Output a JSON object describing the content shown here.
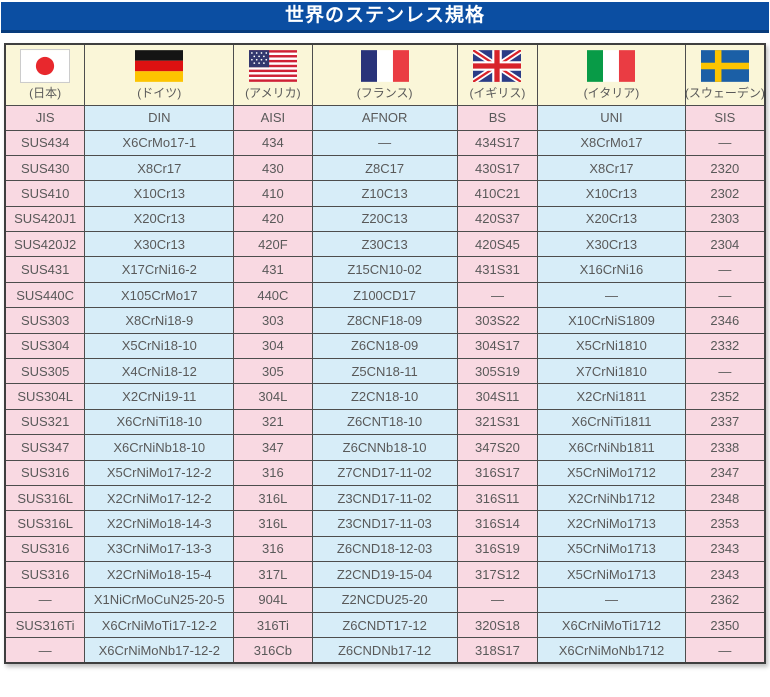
{
  "title": "世界のステンレス規格",
  "colors": {
    "banner_blue": "#0b4ea2",
    "banner_edge": "#083c7c",
    "column_pink": "#f9d9e2",
    "column_blue": "#d7edf8",
    "header_cream": "#faf6d8",
    "grid_line": "#4d4d4d",
    "text_gray": "#595959"
  },
  "table": {
    "columns": [
      {
        "country_label": "(日本)",
        "code": "JIS",
        "flag_icon": "japan-flag"
      },
      {
        "country_label": "(ドイツ)",
        "code": "DIN",
        "flag_icon": "germany-flag"
      },
      {
        "country_label": "(アメリカ)",
        "code": "AISI",
        "flag_icon": "usa-flag"
      },
      {
        "country_label": "(フランス)",
        "code": "AFNOR",
        "flag_icon": "france-flag"
      },
      {
        "country_label": "(イギリス)",
        "code": "BS",
        "flag_icon": "uk-flag"
      },
      {
        "country_label": "(イタリア)",
        "code": "UNI",
        "flag_icon": "italy-flag"
      },
      {
        "country_label": "(スウェーデン)",
        "code": "SIS",
        "flag_icon": "sweden-flag"
      }
    ],
    "rows": [
      [
        "SUS434",
        "X6CrMo17-1",
        "434",
        "—",
        "434S17",
        "X8CrMo17",
        "—"
      ],
      [
        "SUS430",
        "X8Cr17",
        "430",
        "Z8C17",
        "430S17",
        "X8Cr17",
        "2320"
      ],
      [
        "SUS410",
        "X10Cr13",
        "410",
        "Z10C13",
        "410C21",
        "X10Cr13",
        "2302"
      ],
      [
        "SUS420J1",
        "X20Cr13",
        "420",
        "Z20C13",
        "420S37",
        "X20Cr13",
        "2303"
      ],
      [
        "SUS420J2",
        "X30Cr13",
        "420F",
        "Z30C13",
        "420S45",
        "X30Cr13",
        "2304"
      ],
      [
        "SUS431",
        "X17CrNi16-2",
        "431",
        "Z15CN10-02",
        "431S31",
        "X16CrNi16",
        "—"
      ],
      [
        "SUS440C",
        "X105CrMo17",
        "440C",
        "Z100CD17",
        "—",
        "—",
        "—"
      ],
      [
        "SUS303",
        "X8CrNi18-9",
        "303",
        "Z8CNF18-09",
        "303S22",
        "X10CrNiS1809",
        "2346"
      ],
      [
        "SUS304",
        "X5CrNi18-10",
        "304",
        "Z6CN18-09",
        "304S17",
        "X5CrNi1810",
        "2332"
      ],
      [
        "SUS305",
        "X4CrNi18-12",
        "305",
        "Z5CN18-11",
        "305S19",
        "X7CrNi1810",
        "—"
      ],
      [
        "SUS304L",
        "X2CrNi19-11",
        "304L",
        "Z2CN18-10",
        "304S11",
        "X2CrNi1811",
        "2352"
      ],
      [
        "SUS321",
        "X6CrNiTi18-10",
        "321",
        "Z6CNT18-10",
        "321S31",
        "X6CrNiTi1811",
        "2337"
      ],
      [
        "SUS347",
        "X6CrNiNb18-10",
        "347",
        "Z6CNNb18-10",
        "347S20",
        "X6CrNiNb1811",
        "2338"
      ],
      [
        "SUS316",
        "X5CrNiMo17-12-2",
        "316",
        "Z7CND17-11-02",
        "316S17",
        "X5CrNiMo1712",
        "2347"
      ],
      [
        "SUS316L",
        "X2CrNiMo17-12-2",
        "316L",
        "Z3CND17-11-02",
        "316S11",
        "X2CrNiNb1712",
        "2348"
      ],
      [
        "SUS316L",
        "X2CrNiMo18-14-3",
        "316L",
        "Z3CND17-11-03",
        "316S14",
        "X2CrNiMo1713",
        "2353"
      ],
      [
        "SUS316",
        "X3CrNiMo17-13-3",
        "316",
        "Z6CND18-12-03",
        "316S19",
        "X5CrNiMo1713",
        "2343"
      ],
      [
        "SUS316",
        "X2CrNiMo18-15-4",
        "317L",
        "Z2CND19-15-04",
        "317S12",
        "X5CrNiMo1713",
        "2343"
      ],
      [
        "—",
        "X1NiCrMoCuN25-20-5",
        "904L",
        "Z2NCDU25-20",
        "—",
        "—",
        "2362"
      ],
      [
        "SUS316Ti",
        "X6CrNiMoTi17-12-2",
        "316Ti",
        "Z6CNDT17-12",
        "320S18",
        "X6CrNiMoTi1712",
        "2350"
      ],
      [
        "—",
        "X6CrNiMoNb17-12-2",
        "316Cb",
        "Z6CNDNb17-12",
        "318S17",
        "X6CrNiMoNb1712",
        "—"
      ]
    ]
  }
}
